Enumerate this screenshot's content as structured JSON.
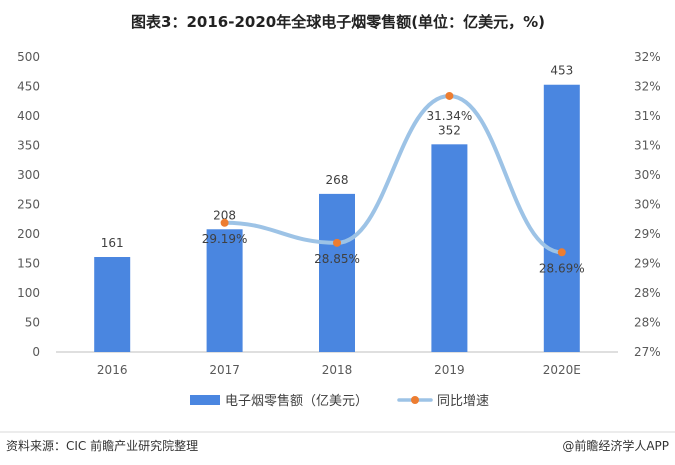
{
  "chart_data": {
    "type": "bar",
    "title": "图表3：2016-2020年全球电子烟零售额(单位：亿美元，%)",
    "categories": [
      "2016",
      "2017",
      "2018",
      "2019",
      "2020E"
    ],
    "series": [
      {
        "name": "电子烟零售额（亿美元）",
        "type": "bar",
        "axis": "left",
        "values": [
          161,
          208,
          268,
          352,
          453
        ],
        "labels": [
          "161",
          "208",
          "268",
          "352",
          "453"
        ],
        "color": "#4A86E0"
      },
      {
        "name": "同比增速",
        "type": "line",
        "axis": "right",
        "smooth": true,
        "values": [
          null,
          29.19,
          28.85,
          31.34,
          28.69
        ],
        "labels": [
          "",
          "29.19%",
          "28.85%",
          "31.34%",
          "28.69%"
        ],
        "line_color": "#9DC3E6",
        "marker_color": "#ED7D31"
      }
    ],
    "left_axis": {
      "ylim": [
        0,
        500
      ],
      "ticks": [
        "0",
        "50",
        "100",
        "150",
        "200",
        "250",
        "300",
        "350",
        "400",
        "450",
        "500"
      ]
    },
    "right_axis": {
      "ylim": [
        27,
        32
      ],
      "tick_values": [
        27,
        27.5,
        28,
        28.5,
        29,
        29.5,
        30,
        30.5,
        31,
        31.5,
        32
      ],
      "ticks": [
        "27%",
        "28%",
        "28%",
        "29%",
        "29%",
        "30%",
        "30%",
        "31%",
        "31%",
        "32%",
        "32%"
      ]
    },
    "grid": false,
    "legend": "bottom-center"
  },
  "footer": {
    "source": "资料来源：CIC 前瞻产业研究院整理",
    "brand": "@前瞻经济学人APP"
  }
}
